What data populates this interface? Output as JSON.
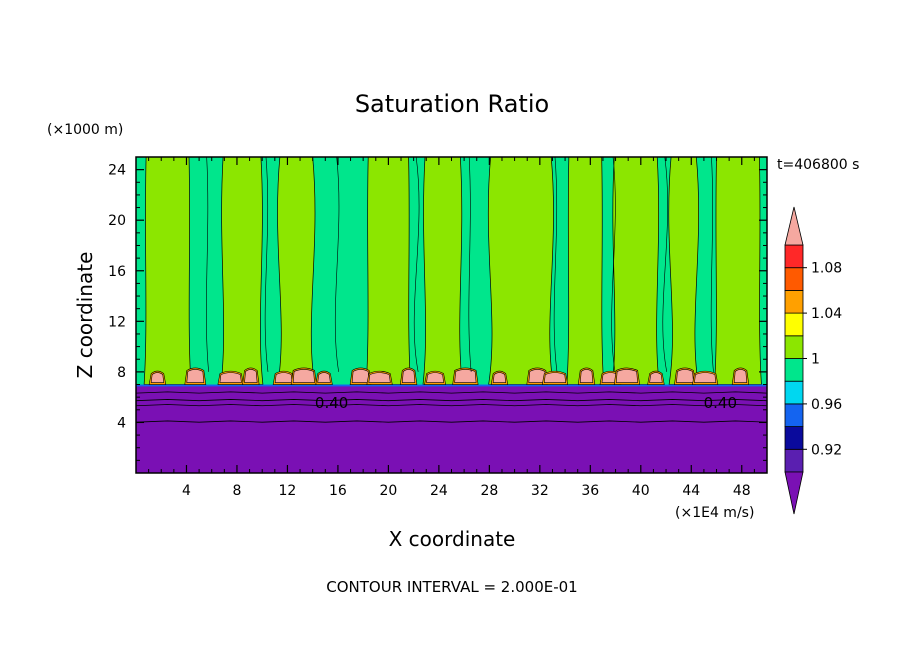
{
  "chart_data": {
    "type": "heatmap",
    "title": "Saturation Ratio",
    "xlabel": "X coordinate",
    "ylabel": "Z coordinate",
    "x_unit": "(×1E4 m/s)",
    "y_unit": "(×1000 m)",
    "time_label": "t=406800 s",
    "footer": "CONTOUR INTERVAL = 2.000E-01",
    "xlim": [
      0,
      50
    ],
    "ylim": [
      0,
      25
    ],
    "x_ticks": [
      "4",
      "8",
      "12",
      "16",
      "20",
      "24",
      "28",
      "32",
      "36",
      "40",
      "44",
      "48"
    ],
    "y_ticks": [
      "4",
      "8",
      "12",
      "16",
      "20",
      "24"
    ],
    "contour_labels": [
      {
        "text": "0.40",
        "x": 15.5,
        "z": 5.5
      },
      {
        "text": "0.40",
        "x": 46.3,
        "z": 5.5
      }
    ],
    "colorbar": {
      "levels": [
        {
          "lo": 0.9,
          "hi": 0.92,
          "color": "#5a1fb0"
        },
        {
          "lo": 0.92,
          "hi": 0.94,
          "color": "#0a0a9c"
        },
        {
          "lo": 0.94,
          "hi": 0.96,
          "color": "#1464f0"
        },
        {
          "lo": 0.96,
          "hi": 0.98,
          "color": "#00d7f0"
        },
        {
          "lo": 0.98,
          "hi": 1.0,
          "color": "#00e68c"
        },
        {
          "lo": 1.0,
          "hi": 1.02,
          "color": "#8ce600"
        },
        {
          "lo": 1.02,
          "hi": 1.04,
          "color": "#ffff00"
        },
        {
          "lo": 1.04,
          "hi": 1.06,
          "color": "#ffa000"
        },
        {
          "lo": 1.06,
          "hi": 1.08,
          "color": "#ff5a00"
        },
        {
          "lo": 1.08,
          "hi": 1.1,
          "color": "#ff2828"
        }
      ],
      "under_color": "#7a10b4",
      "over_color": "#f5a8a0",
      "tick_labels": [
        "0.92",
        "0.96",
        "1",
        "1.04",
        "1.08"
      ]
    },
    "colors": {
      "below_cloud": "#7a10b4",
      "subsaturated": "#00e68c",
      "supersaturated": "#8ce600",
      "cloud_base_peaks": "#f5a8a0"
    }
  }
}
